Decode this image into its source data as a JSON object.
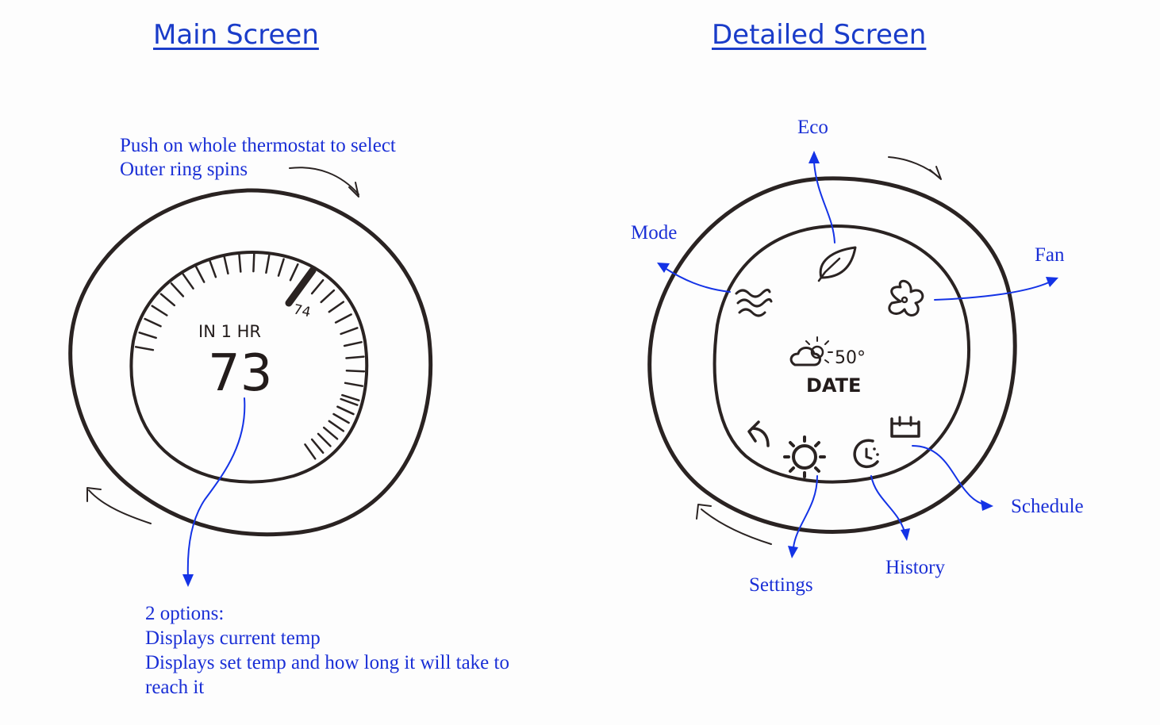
{
  "headings": {
    "main": "Main Screen",
    "detailed": "Detailed Screen"
  },
  "main_screen": {
    "note_push": "Push on whole thermostat to select",
    "note_ring": "Outer ring spins",
    "dial_caption": "IN 1 HR",
    "current_temp": "73",
    "target_temp": "74",
    "options_notes": [
      "2 options:",
      "Displays current temp",
      "Displays set temp and how long it will take to",
      "reach it"
    ]
  },
  "detailed_screen": {
    "weather_temp": "50°",
    "date": "DATE",
    "labels": {
      "eco": "Eco",
      "mode": "Mode",
      "fan": "Fan",
      "schedule": "Schedule",
      "history": "History",
      "settings": "Settings"
    },
    "icons": [
      "leaf-icon",
      "mode-waves-icon",
      "fan-icon",
      "weather-icon",
      "back-arrow-icon",
      "settings-gear-icon",
      "clock-icon",
      "calendar-icon"
    ]
  },
  "colors": {
    "annotation_blue": "#1a2fd6",
    "ink": "#2a2322",
    "background": "#fdfdfd"
  }
}
